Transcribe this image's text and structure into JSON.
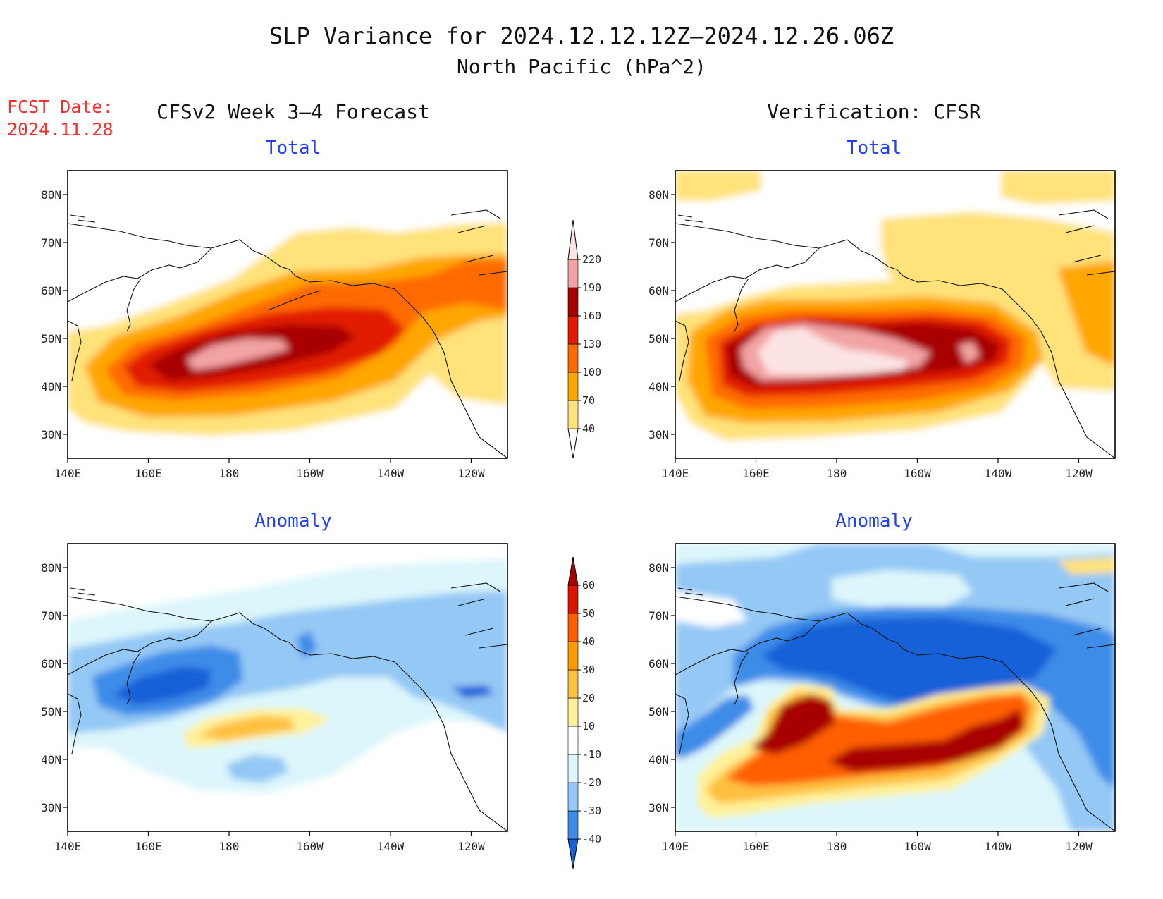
{
  "title_line1": "SLP Variance for 2024.12.12.12Z–2024.12.26.06Z",
  "title_line2": "North Pacific (hPa^2)",
  "fcst_date_label": "FCST Date:",
  "fcst_date_value": "2024.11.28",
  "left_column_title": "CFSv2 Week 3–4 Forecast",
  "right_column_title": "Verification: CFSR",
  "panels": [
    {
      "id": "fcst-total",
      "subtitle": "Total"
    },
    {
      "id": "cfsr-total",
      "subtitle": "Total"
    },
    {
      "id": "fcst-anomaly",
      "subtitle": "Anomaly"
    },
    {
      "id": "cfsr-anomaly",
      "subtitle": "Anomaly"
    }
  ],
  "lat_ticks": [
    "80N",
    "70N",
    "60N",
    "50N",
    "40N",
    "30N"
  ],
  "lon_ticks": [
    "140E",
    "160E",
    "180",
    "160W",
    "140W",
    "120W"
  ],
  "map_extent": {
    "lon_min": 140,
    "lon_max": 249,
    "lat_min": 25,
    "lat_max": 85
  },
  "colorbar_total": {
    "levels": [
      "40",
      "70",
      "100",
      "130",
      "160",
      "190",
      "220"
    ],
    "colors": [
      "#ffe27a",
      "#ffa600",
      "#ff6a00",
      "#e11a00",
      "#a80000",
      "#f2a3a3",
      "#fde4e4"
    ]
  },
  "colorbar_anomaly": {
    "levels": [
      "-40",
      "-30",
      "-20",
      "-10",
      "10",
      "20",
      "30",
      "40",
      "50",
      "60"
    ],
    "colors": [
      "#1561d8",
      "#3c8ce8",
      "#94c8f5",
      "#dcf6fb",
      "#ffffff",
      "#fff19a",
      "#ffc040",
      "#ff9a00",
      "#ff5f00",
      "#d91400",
      "#a80000"
    ]
  }
}
